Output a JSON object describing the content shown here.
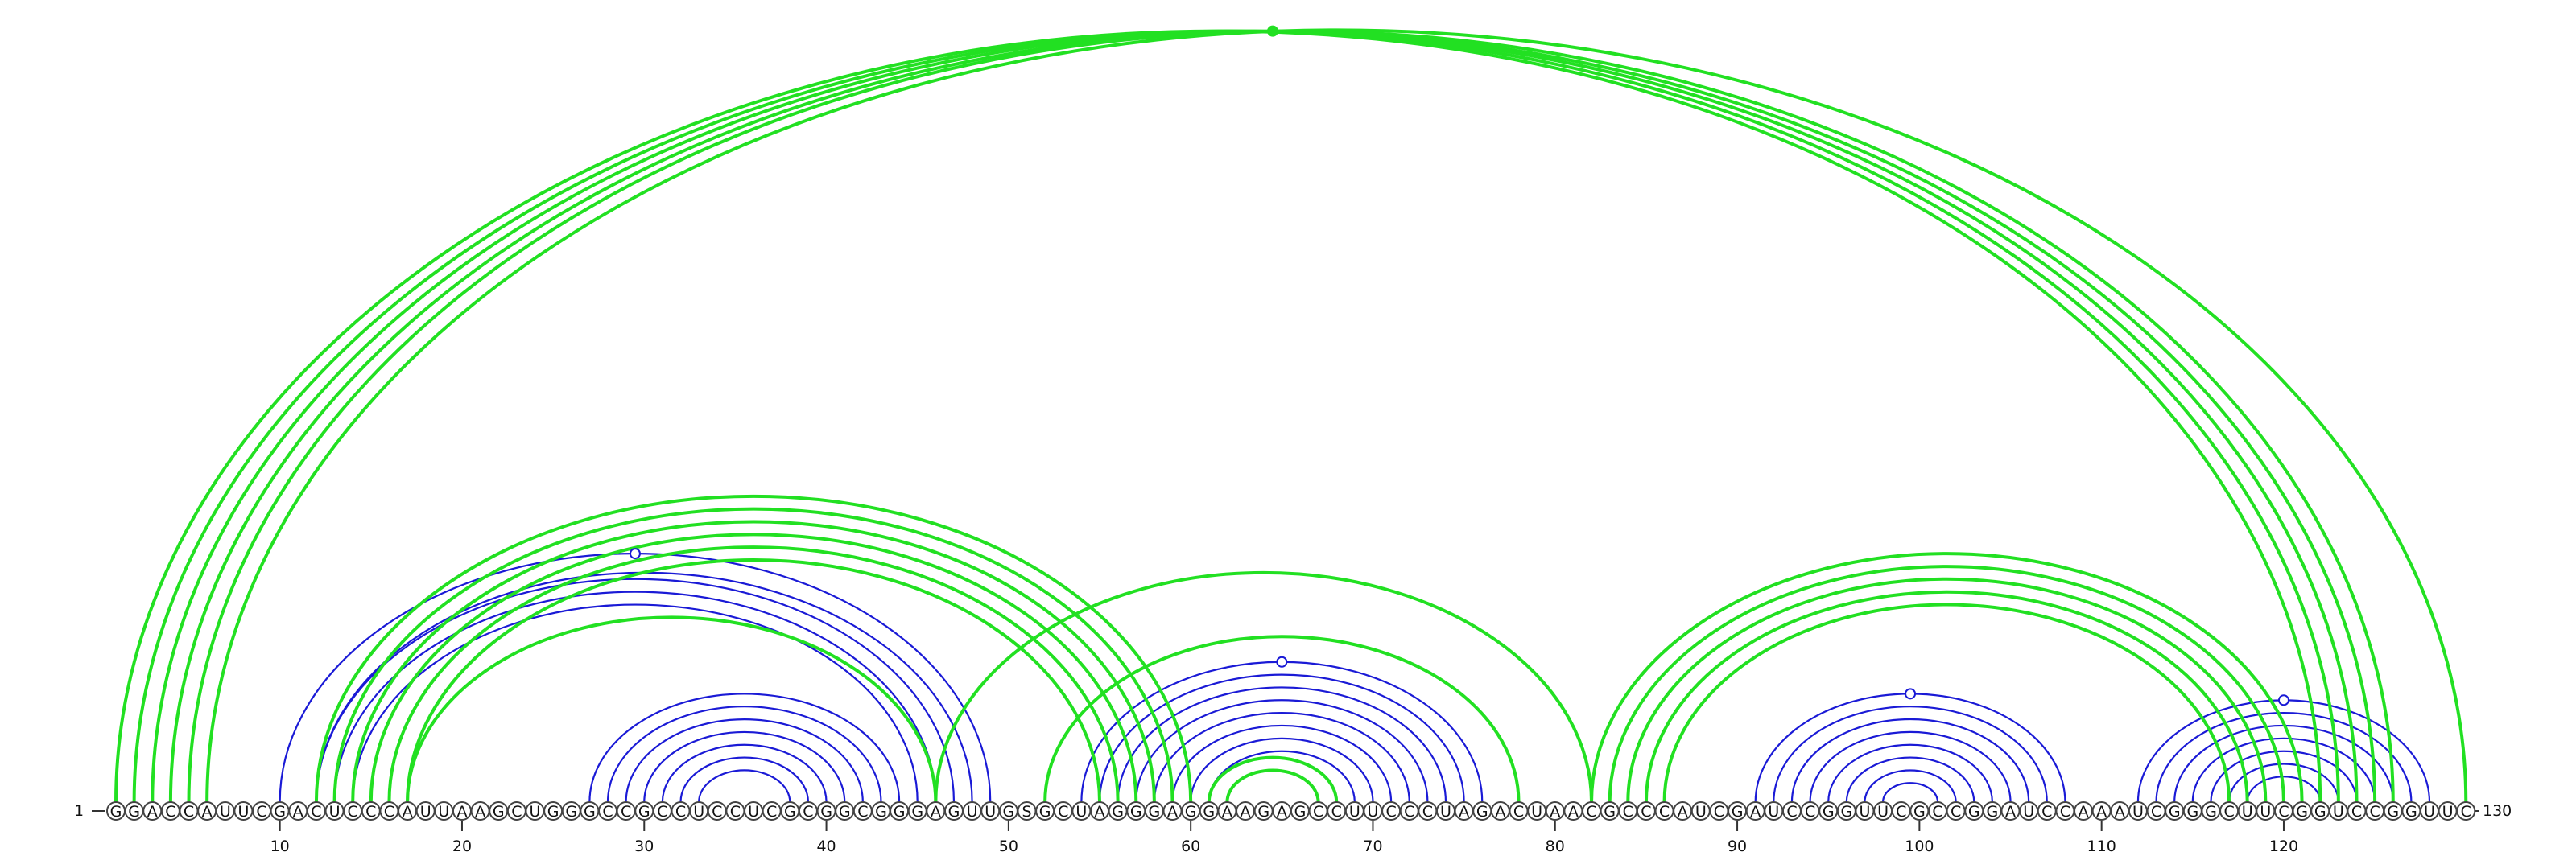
{
  "sequence": "GGACCAUUCGACUCCCAUUAAGCUGGGCCGCCUCCUCGCGGCGGGAGUUGSGCUAGGGAGGAAGAGCCUUCCCUAGACUAACGCCCAUCGAUCCGGUUCGCCGGAUCCAAAUCGGGCUUCGGUCCGGUUC",
  "start_label": "1",
  "end_label": "130",
  "tick_labels": [
    "10",
    "20",
    "30",
    "40",
    "50",
    "60",
    "70",
    "80",
    "90",
    "100",
    "110",
    "120"
  ],
  "colors": {
    "blue": "#1a1ad6",
    "green": "#22e022",
    "circle_stroke": "#444444",
    "text": "#111111"
  },
  "arcs": {
    "blue": [
      {
        "i": 10,
        "j": 49
      },
      {
        "i": 12,
        "j": 48
      },
      {
        "i": 12,
        "j": 47
      },
      {
        "i": 13,
        "j": 46
      },
      {
        "i": 14,
        "j": 45
      },
      {
        "i": 27,
        "j": 44
      },
      {
        "i": 28,
        "j": 43
      },
      {
        "i": 29,
        "j": 42
      },
      {
        "i": 30,
        "j": 41
      },
      {
        "i": 31,
        "j": 40
      },
      {
        "i": 32,
        "j": 39
      },
      {
        "i": 33,
        "j": 38
      },
      {
        "i": 54,
        "j": 76
      },
      {
        "i": 55,
        "j": 75
      },
      {
        "i": 56,
        "j": 74
      },
      {
        "i": 57,
        "j": 73
      },
      {
        "i": 58,
        "j": 72
      },
      {
        "i": 59,
        "j": 71
      },
      {
        "i": 60,
        "j": 70
      },
      {
        "i": 61,
        "j": 69
      },
      {
        "i": 91,
        "j": 108
      },
      {
        "i": 92,
        "j": 107
      },
      {
        "i": 93,
        "j": 106
      },
      {
        "i": 94,
        "j": 105
      },
      {
        "i": 95,
        "j": 104
      },
      {
        "i": 96,
        "j": 103
      },
      {
        "i": 97,
        "j": 102
      },
      {
        "i": 98,
        "j": 101
      },
      {
        "i": 112,
        "j": 128
      },
      {
        "i": 113,
        "j": 127
      },
      {
        "i": 114,
        "j": 126
      },
      {
        "i": 115,
        "j": 125
      },
      {
        "i": 116,
        "j": 124
      },
      {
        "i": 117,
        "j": 123
      },
      {
        "i": 118,
        "j": 122
      }
    ],
    "green": [
      {
        "i": 1,
        "j": 122
      },
      {
        "i": 2,
        "j": 123
      },
      {
        "i": 3,
        "j": 124
      },
      {
        "i": 4,
        "j": 125
      },
      {
        "i": 5,
        "j": 126
      },
      {
        "i": 6,
        "j": 130
      },
      {
        "i": 12,
        "j": 60
      },
      {
        "i": 13,
        "j": 59
      },
      {
        "i": 14,
        "j": 58
      },
      {
        "i": 15,
        "j": 57
      },
      {
        "i": 16,
        "j": 56
      },
      {
        "i": 17,
        "j": 55
      },
      {
        "i": 17,
        "j": 46
      },
      {
        "i": 46,
        "j": 82
      },
      {
        "i": 52,
        "j": 78
      },
      {
        "i": 61,
        "j": 68
      },
      {
        "i": 62,
        "j": 67
      },
      {
        "i": 82,
        "j": 121
      },
      {
        "i": 83,
        "j": 120
      },
      {
        "i": 84,
        "j": 119
      },
      {
        "i": 85,
        "j": 118
      },
      {
        "i": 86,
        "j": 117
      }
    ]
  },
  "markers": [
    {
      "i": 29.5,
      "type": "open",
      "color": "blue"
    },
    {
      "i": 64.5,
      "type": "filled",
      "color": "green"
    },
    {
      "i": 64.5,
      "type": "open",
      "color": "blue"
    },
    {
      "i": 99.5,
      "type": "open",
      "color": "blue"
    },
    {
      "i": 120,
      "type": "open",
      "color": "blue"
    }
  ]
}
